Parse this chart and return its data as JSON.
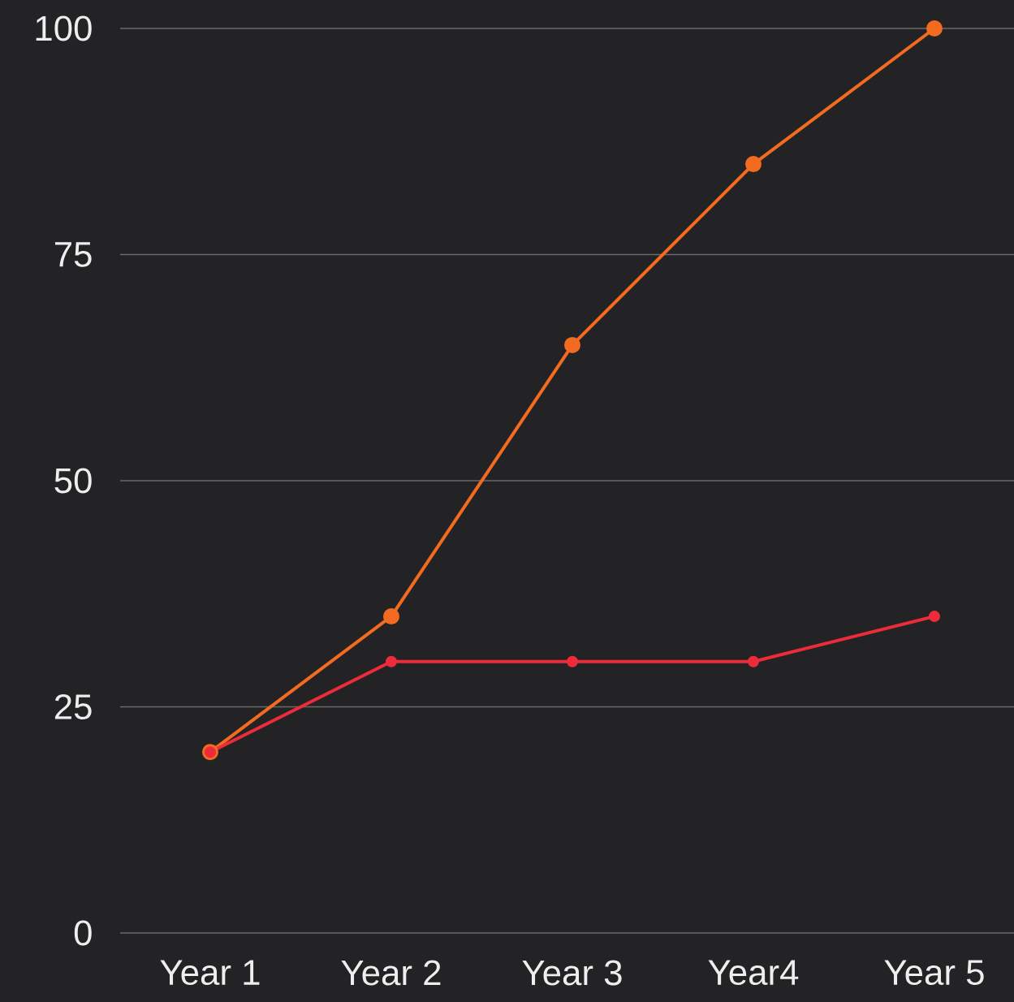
{
  "chart_data": {
    "type": "line",
    "categories": [
      "Year 1",
      "Year 2",
      "Year 3",
      "Year4",
      "Year 5"
    ],
    "series": [
      {
        "color": "#f26b21",
        "values": [
          20,
          35,
          65,
          85,
          100
        ]
      },
      {
        "color": "#ee2b3b",
        "values": [
          20,
          30,
          30,
          30,
          35
        ]
      }
    ],
    "ylim": [
      0,
      100
    ],
    "yticks": [
      0,
      25,
      50,
      75,
      100
    ],
    "grid": "y",
    "marker": "circle",
    "line_style": "solid"
  }
}
